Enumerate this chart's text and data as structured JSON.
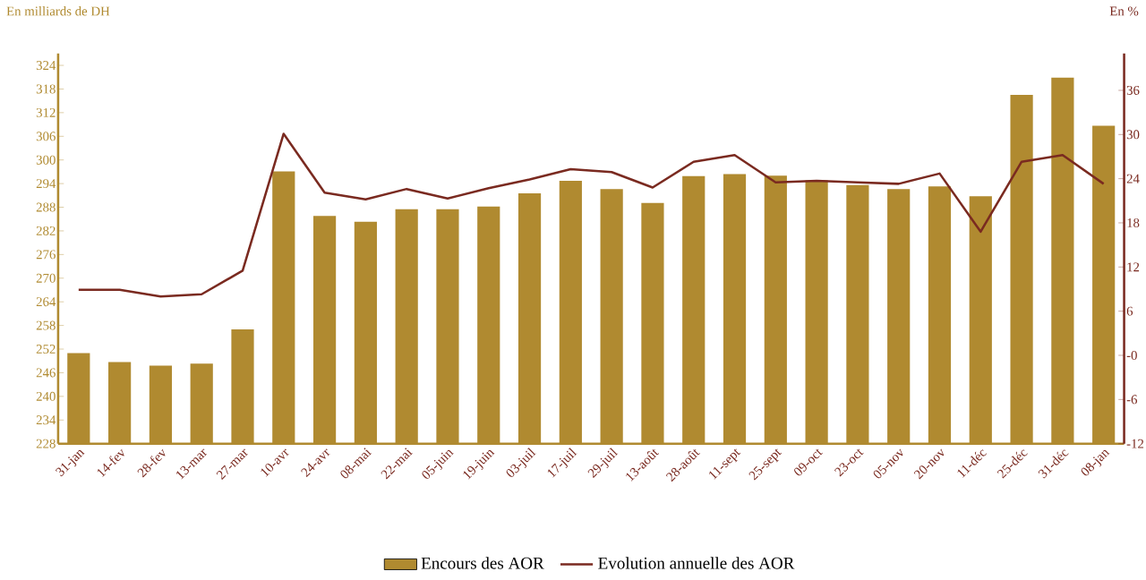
{
  "chart_data": {
    "type": "bar",
    "ylabel": "En milliards de DH",
    "y2label": "En %",
    "categories": [
      "31-jan",
      "14-fev",
      "28-fev",
      "13-mar",
      "27-mar",
      "10-avr",
      "24-avr",
      "08-mai",
      "22-mai",
      "05-juin",
      "19-juin",
      "03-juil",
      "17-juil",
      "29-juil",
      "13-août",
      "28-août",
      "11-sept",
      "25-sept",
      "09-oct",
      "23-oct",
      "05-nov",
      "20-nov",
      "11-déc",
      "25-déc",
      "31-déc",
      "08-jan"
    ],
    "series": [
      {
        "name": "Encours des AOR",
        "color": "#b08a30",
        "values": [
          251,
          248.7,
          247.8,
          248.3,
          257,
          297.1,
          285.8,
          284.3,
          287.5,
          287.5,
          288.2,
          291.5,
          294.7,
          292.6,
          289.1,
          295.9,
          296.4,
          296,
          294.8,
          293.6,
          292.6,
          293.3,
          290.8,
          316.5,
          320.9,
          308.7
        ]
      },
      {
        "name": "Evolution annuelle des AOR",
        "type": "line",
        "axis": "y2",
        "color": "#7a2a20",
        "values": [
          8.9,
          8.9,
          8,
          8.3,
          11.5,
          30.1,
          22.1,
          21.2,
          22.6,
          21.3,
          22.7,
          23.9,
          25.3,
          24.9,
          22.8,
          26.3,
          27.2,
          23.5,
          23.7,
          23.5,
          23.3,
          24.7,
          16.8,
          26.3,
          27.2,
          23.3
        ]
      }
    ],
    "ylim": [
      228,
      327
    ],
    "yticks": [
      228,
      234,
      240,
      246,
      252,
      258,
      264,
      270,
      276,
      282,
      288,
      294,
      300,
      306,
      312,
      318,
      324
    ],
    "y2lim": [
      -12,
      41
    ],
    "y2ticks": [
      -12,
      -6,
      {
        "value": 0,
        "label": "-0"
      },
      6,
      12,
      18,
      24,
      30,
      36
    ],
    "legend": "bottom"
  }
}
